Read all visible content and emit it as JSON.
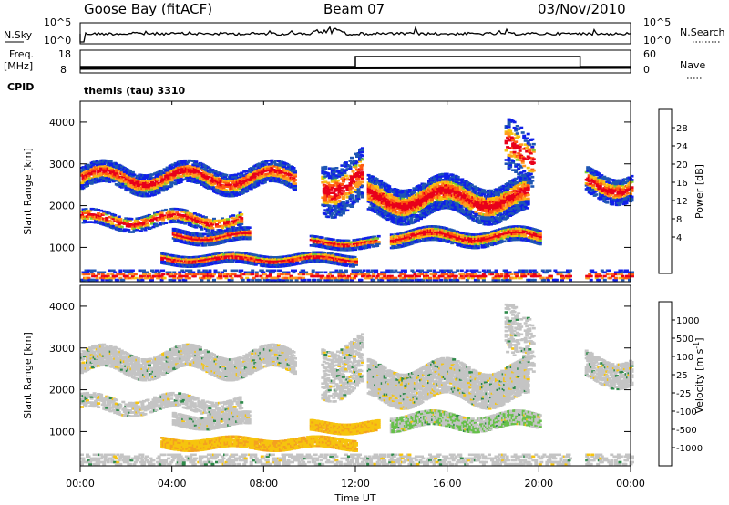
{
  "header": {
    "station": "Goose Bay (fitACF)",
    "beam": "Beam 07",
    "date": "03/Nov/2010"
  },
  "status_panels": {
    "nsky_label": "N.Sky",
    "nsearch_label": "N.Search",
    "noise_ticks": [
      "10^5",
      "10^0"
    ],
    "freq_label": "Freq.",
    "freq_unit": "[MHz]",
    "freq_ticks": [
      "18",
      "8"
    ],
    "nave_label": "Nave",
    "nave_ticks": [
      "60",
      "0"
    ],
    "cpid_label": "CPID",
    "cpid_text": "themis (tau) 3310"
  },
  "chart_data": [
    {
      "type": "heatmap",
      "name": "power",
      "ylabel": "Slant Range [km]",
      "yticks": [
        1000,
        2000,
        3000,
        4000
      ],
      "ylim": [
        180,
        4500
      ],
      "xlim": [
        0,
        24
      ],
      "colorbar": {
        "label": "Power [dB]",
        "ticks": [
          "28",
          "24",
          "20",
          "16",
          "12",
          "8",
          "4"
        ],
        "colors": [
          "#e8001a",
          "#ff5a10",
          "#ff9a20",
          "#f6c40e",
          "#7ccf2c",
          "#2a9a4a",
          "#3a8a6e",
          "#1f56b4",
          "#1020e8"
        ]
      }
    },
    {
      "type": "heatmap",
      "name": "velocity",
      "ylabel": "Slant Range [km]",
      "yticks": [
        1000,
        2000,
        3000,
        4000
      ],
      "ylim": [
        180,
        4500
      ],
      "xlim": [
        0,
        24
      ],
      "xlabel": "Time UT",
      "xticks": [
        "00:00",
        "04:00",
        "08:00",
        "12:00",
        "16:00",
        "20:00",
        "00:00"
      ],
      "colorbar": {
        "label": "Velocity [m s",
        "label_sup": "-1",
        "label_end": "]",
        "ticks": [
          "1000",
          "500",
          "100",
          "25",
          "-25",
          "-100",
          "-500",
          "-1000"
        ],
        "colors": [
          "#1030c0",
          "#2a70b0",
          "#2e8a4a",
          "#66c04a",
          "#c4c4c4",
          "#f6c40e",
          "#f4a020",
          "#ff6010",
          "#e8001a"
        ]
      }
    }
  ]
}
